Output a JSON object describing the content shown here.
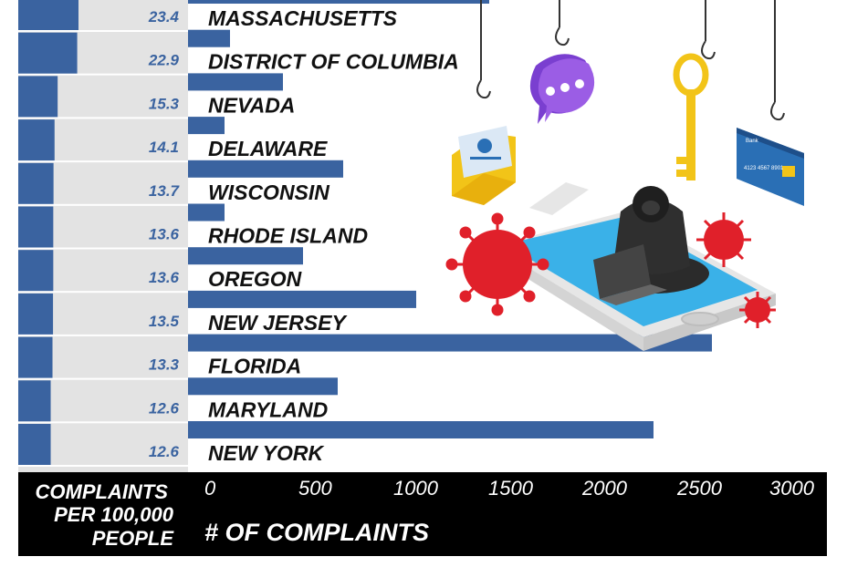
{
  "chart_data": {
    "type": "bar",
    "categories": [
      "MASSACHUSETTS",
      "DISTRICT OF COLUMBIA",
      "NEVADA",
      "DELAWARE",
      "WISCONSIN",
      "RHODE ISLAND",
      "OREGON",
      "NEW JERSEY",
      "FLORIDA",
      "MARYLAND",
      "NEW YORK"
    ],
    "series": [
      {
        "name": "# OF COMPLAINTS",
        "values": [
          1650,
          230,
          520,
          200,
          850,
          200,
          630,
          1250,
          2870,
          820,
          2550
        ]
      },
      {
        "name": "COMPLAINTS PER 100,000 PEOPLE",
        "values": [
          23.4,
          22.9,
          15.3,
          14.1,
          13.7,
          13.6,
          13.6,
          13.5,
          13.3,
          12.6,
          12.6
        ]
      }
    ],
    "rate_labels": [
      "23.4",
      "22.9",
      "15.3",
      "14.1",
      "13.7",
      "13.6",
      "13.6",
      "13.5",
      "13.3",
      "12.6",
      "12.6"
    ],
    "x_ticks": [
      "0",
      "500",
      "1000",
      "1500",
      "2000",
      "2500",
      "3000"
    ],
    "xlim": [
      0,
      3000
    ],
    "xlabel": "# OF COMPLAINTS",
    "left_axis_title": [
      "COMPLAINTS",
      "PER 100,000",
      "PEOPLE"
    ],
    "colors": {
      "bar": "#3a63a0",
      "rate_bar": "#3a63a0",
      "rate_panel": "#e3e3e3",
      "footer": "#000000"
    }
  }
}
